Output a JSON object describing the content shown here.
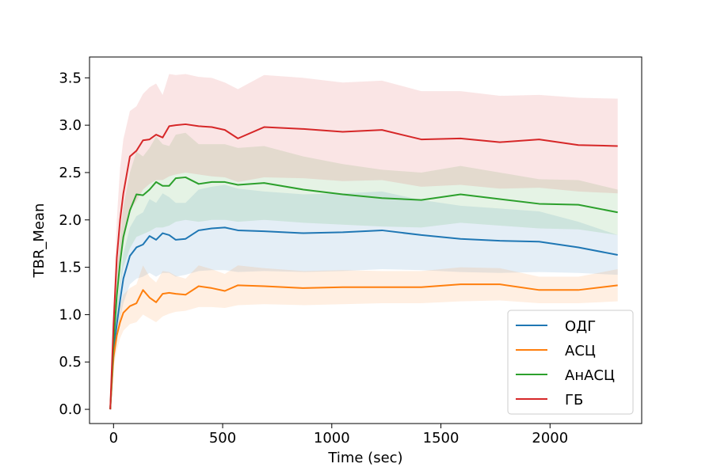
{
  "chart_data": {
    "type": "line",
    "title": "",
    "xlabel": "Time (sec)",
    "ylabel": "TBR_Mean",
    "xlim": [
      -110,
      2420
    ],
    "ylim": [
      -0.15,
      3.72
    ],
    "xticks": [
      0,
      500,
      1000,
      1500,
      2000
    ],
    "xtick_labels": [
      "0",
      "500",
      "1000",
      "1500",
      "2000"
    ],
    "yticks": [
      0.0,
      0.5,
      1.0,
      1.5,
      2.0,
      2.5,
      3.0,
      3.5
    ],
    "ytick_labels": [
      "0.0",
      "0.5",
      "1.0",
      "1.5",
      "2.0",
      "2.5",
      "3.0",
      "3.5"
    ],
    "grid": false,
    "legend_position": "lower-right",
    "series": [
      {
        "name": "ОДГ",
        "color": "#1f77b4",
        "x": [
          -15,
          0,
          15,
          30,
          45,
          75,
          105,
          135,
          165,
          195,
          225,
          255,
          285,
          330,
          390,
          450,
          510,
          570,
          690,
          870,
          1050,
          1230,
          1410,
          1590,
          1770,
          1950,
          2130,
          2310
        ],
        "y": [
          0.0,
          0.6,
          0.9,
          1.15,
          1.38,
          1.62,
          1.71,
          1.74,
          1.83,
          1.79,
          1.86,
          1.84,
          1.79,
          1.8,
          1.89,
          1.91,
          1.92,
          1.89,
          1.88,
          1.86,
          1.87,
          1.89,
          1.84,
          1.8,
          1.78,
          1.77,
          1.71,
          1.63
        ],
        "lower": [
          0.0,
          0.45,
          0.72,
          0.95,
          1.12,
          1.32,
          1.38,
          1.4,
          1.44,
          1.4,
          1.44,
          1.44,
          1.4,
          1.42,
          1.46,
          1.47,
          1.47,
          1.45,
          1.46,
          1.45,
          1.46,
          1.48,
          1.47,
          1.45,
          1.44,
          1.45,
          1.44,
          1.42
        ],
        "upper": [
          0.0,
          0.75,
          1.08,
          1.35,
          1.64,
          1.92,
          2.04,
          2.08,
          2.22,
          2.18,
          2.28,
          2.24,
          2.18,
          2.18,
          2.32,
          2.35,
          2.37,
          2.33,
          2.3,
          2.27,
          2.28,
          2.3,
          2.21,
          2.15,
          2.12,
          2.09,
          1.98,
          1.84
        ]
      },
      {
        "name": "АСЦ",
        "color": "#ff7f0e",
        "x": [
          -15,
          0,
          15,
          30,
          45,
          75,
          105,
          135,
          165,
          195,
          225,
          255,
          285,
          330,
          390,
          450,
          510,
          570,
          690,
          870,
          1050,
          1230,
          1410,
          1590,
          1770,
          1950,
          2130,
          2310
        ],
        "y": [
          0.0,
          0.55,
          0.78,
          0.92,
          1.02,
          1.09,
          1.12,
          1.26,
          1.18,
          1.13,
          1.22,
          1.23,
          1.22,
          1.21,
          1.3,
          1.28,
          1.25,
          1.31,
          1.3,
          1.28,
          1.29,
          1.29,
          1.29,
          1.32,
          1.32,
          1.26,
          1.26,
          1.31
        ],
        "lower": [
          0.0,
          0.45,
          0.62,
          0.75,
          0.83,
          0.9,
          0.92,
          1.0,
          0.96,
          0.92,
          0.98,
          1.01,
          1.03,
          1.04,
          1.08,
          1.08,
          1.07,
          1.1,
          1.11,
          1.1,
          1.11,
          1.12,
          1.12,
          1.14,
          1.15,
          1.12,
          1.12,
          1.14
        ],
        "upper": [
          0.0,
          0.65,
          0.94,
          1.09,
          1.21,
          1.28,
          1.32,
          1.52,
          1.4,
          1.34,
          1.46,
          1.45,
          1.41,
          1.38,
          1.52,
          1.48,
          1.43,
          1.52,
          1.49,
          1.46,
          1.47,
          1.46,
          1.46,
          1.5,
          1.49,
          1.4,
          1.4,
          1.48
        ]
      },
      {
        "name": "АнАСЦ",
        "color": "#2ca02c",
        "x": [
          -15,
          0,
          15,
          30,
          45,
          75,
          105,
          135,
          165,
          195,
          225,
          255,
          285,
          330,
          390,
          450,
          510,
          570,
          690,
          870,
          1050,
          1230,
          1410,
          1590,
          1770,
          1950,
          2130,
          2310
        ],
        "y": [
          0.0,
          0.7,
          1.2,
          1.55,
          1.82,
          2.1,
          2.27,
          2.26,
          2.32,
          2.4,
          2.36,
          2.36,
          2.44,
          2.45,
          2.38,
          2.4,
          2.4,
          2.37,
          2.39,
          2.32,
          2.27,
          2.23,
          2.21,
          2.27,
          2.22,
          2.17,
          2.16,
          2.08
        ],
        "lower": [
          0.0,
          0.55,
          0.95,
          1.28,
          1.5,
          1.7,
          1.82,
          1.85,
          1.88,
          1.92,
          1.92,
          1.94,
          1.98,
          2.0,
          1.98,
          2.0,
          2.0,
          1.98,
          2.0,
          1.97,
          1.95,
          1.93,
          1.92,
          1.97,
          1.94,
          1.91,
          1.9,
          1.84
        ],
        "upper": [
          0.0,
          0.85,
          1.45,
          1.82,
          2.14,
          2.5,
          2.72,
          2.67,
          2.76,
          2.88,
          2.8,
          2.78,
          2.9,
          2.92,
          2.8,
          2.8,
          2.8,
          2.76,
          2.78,
          2.67,
          2.59,
          2.53,
          2.5,
          2.57,
          2.5,
          2.43,
          2.42,
          2.32
        ]
      },
      {
        "name": "ГБ",
        "color": "#d62728",
        "x": [
          -15,
          0,
          15,
          30,
          45,
          75,
          105,
          135,
          165,
          195,
          225,
          255,
          285,
          330,
          390,
          450,
          510,
          570,
          690,
          870,
          1050,
          1230,
          1410,
          1590,
          1770,
          1950,
          2130,
          2310
        ],
        "y": [
          0.0,
          0.9,
          1.6,
          2.0,
          2.28,
          2.67,
          2.73,
          2.84,
          2.85,
          2.9,
          2.87,
          2.99,
          3.0,
          3.01,
          2.99,
          2.98,
          2.95,
          2.86,
          2.98,
          2.96,
          2.93,
          2.95,
          2.85,
          2.86,
          2.82,
          2.85,
          2.79,
          2.78
        ],
        "lower": [
          0.0,
          0.7,
          1.2,
          1.55,
          1.75,
          2.1,
          2.2,
          2.32,
          2.38,
          2.42,
          2.42,
          2.46,
          2.48,
          2.5,
          2.48,
          2.46,
          2.45,
          2.4,
          2.45,
          2.44,
          2.41,
          2.42,
          2.35,
          2.37,
          2.33,
          2.34,
          2.3,
          2.28
        ],
        "upper": [
          0.0,
          1.1,
          2.0,
          2.55,
          2.85,
          3.15,
          3.2,
          3.33,
          3.4,
          3.44,
          3.32,
          3.54,
          3.53,
          3.54,
          3.51,
          3.5,
          3.45,
          3.38,
          3.53,
          3.5,
          3.45,
          3.47,
          3.36,
          3.36,
          3.31,
          3.32,
          3.29,
          3.28
        ]
      }
    ]
  }
}
